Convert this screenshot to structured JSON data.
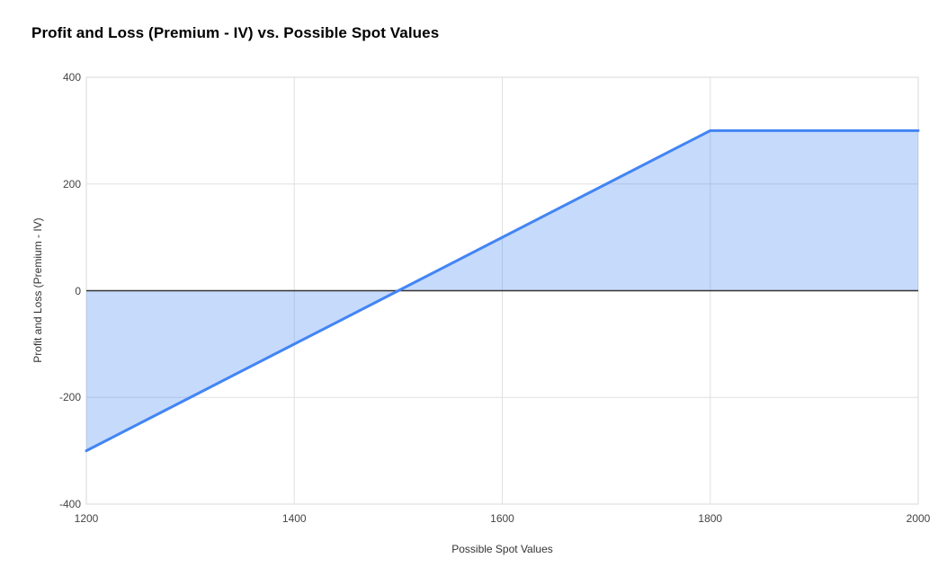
{
  "chart_data": {
    "type": "area",
    "title": "Profit and Loss (Premium - IV) vs. Possible Spot Values",
    "xlabel": "Possible Spot Values",
    "ylabel": "Profit and Loss (Premium - IV)",
    "series": [
      {
        "name": "Profit and Loss (Premium - IV)",
        "x": [
          1200,
          1300,
          1400,
          1500,
          1600,
          1700,
          1800,
          1900,
          2000
        ],
        "y": [
          -300,
          -200,
          -100,
          0,
          100,
          200,
          300,
          300,
          300
        ]
      }
    ],
    "xlim": [
      1200,
      2000
    ],
    "ylim": [
      -400,
      400
    ],
    "xticks": [
      1200,
      1400,
      1600,
      1800,
      2000
    ],
    "yticks": [
      -400,
      -200,
      0,
      200,
      400
    ],
    "baseline": 0,
    "grid": true,
    "legend_position": "none",
    "colors": {
      "line": "#4285f4",
      "fill": "rgba(66,133,244,0.3)",
      "gridline": "#e0e0e0",
      "plot_border": "#dadada",
      "zero_line": "#333333",
      "title_text": "#000000",
      "tick_text": "#444444",
      "background": "#ffffff"
    }
  }
}
